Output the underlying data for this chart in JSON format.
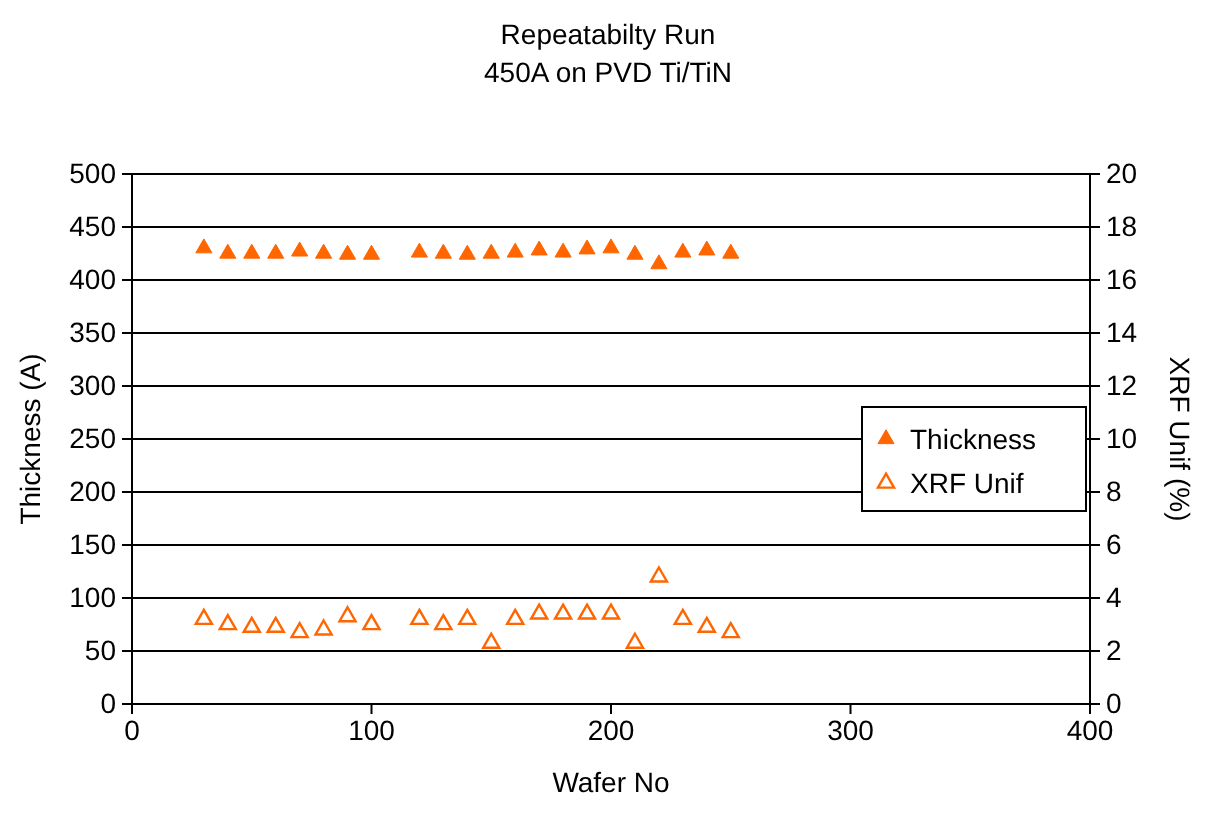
{
  "chart_data": {
    "type": "scatter",
    "title": "Repeatabilty Run",
    "subtitle": "450A on PVD Ti/TiN",
    "xlabel": "Wafer No",
    "ylabel": "Thickness (A)",
    "y2label": "XRF Unif (%)",
    "x": [
      30,
      40,
      50,
      60,
      70,
      80,
      90,
      100,
      120,
      130,
      140,
      150,
      160,
      170,
      180,
      190,
      200,
      210,
      220,
      230,
      240,
      250
    ],
    "series": [
      {
        "name": "Thickness",
        "color": "#ff6600",
        "values": [
          430,
          425,
          425,
          425,
          427,
          425,
          424,
          424,
          426,
          425,
          424,
          425,
          426,
          428,
          426,
          429,
          430,
          424,
          415,
          426,
          428,
          425
        ]
      },
      {
        "name": "XRF Unif",
        "color": "#ff6600",
        "axis": "y2",
        "values": [
          3.2,
          3.0,
          2.9,
          2.9,
          2.7,
          2.8,
          3.3,
          3.0,
          3.2,
          3.0,
          3.2,
          2.3,
          3.2,
          3.4,
          3.4,
          3.4,
          3.4,
          2.3,
          4.8,
          3.2,
          2.9,
          2.7
        ]
      }
    ],
    "xlim": [
      0,
      400
    ],
    "xticks": [
      0,
      100,
      200,
      300,
      400
    ],
    "ylim": [
      0,
      500
    ],
    "yticks": [
      0,
      50,
      100,
      150,
      200,
      250,
      300,
      350,
      400,
      450,
      500
    ],
    "y2lim": [
      0,
      20
    ],
    "y2ticks": [
      0,
      2,
      4,
      6,
      8,
      10,
      12,
      14,
      16,
      18,
      20
    ],
    "grid": "y",
    "legend": "right",
    "marker": "triangle"
  }
}
